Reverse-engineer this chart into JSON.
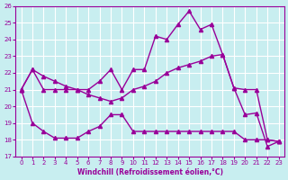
{
  "xlabel": "Windchill (Refroidissement éolien,°C)",
  "xlim": [
    -0.5,
    23.5
  ],
  "ylim": [
    17,
    26
  ],
  "yticks": [
    17,
    18,
    19,
    20,
    21,
    22,
    23,
    24,
    25,
    26
  ],
  "xticks": [
    0,
    1,
    2,
    3,
    4,
    5,
    6,
    7,
    8,
    9,
    10,
    11,
    12,
    13,
    14,
    15,
    16,
    17,
    18,
    19,
    20,
    21,
    22,
    23
  ],
  "background_color": "#c8eef0",
  "grid_color": "#ffffff",
  "line_color": "#990099",
  "series": [
    {
      "x": [
        0,
        1,
        2,
        3,
        4,
        5,
        6,
        7,
        8,
        9,
        10,
        11,
        12,
        13,
        14,
        15,
        16,
        17,
        18,
        19,
        20,
        21,
        22,
        23
      ],
      "y": [
        21.0,
        22.2,
        21.0,
        21.0,
        21.0,
        21.0,
        21.0,
        21.5,
        22.2,
        21.0,
        22.2,
        22.2,
        24.2,
        24.0,
        24.9,
        25.7,
        24.6,
        24.9,
        23.1,
        21.1,
        19.5,
        19.6,
        17.6,
        17.9
      ],
      "marker": "^",
      "markersize": 3,
      "linewidth": 1.0
    },
    {
      "x": [
        0,
        1,
        2,
        3,
        4,
        5,
        6,
        7,
        8,
        9,
        10,
        11,
        12,
        13,
        14,
        15,
        16,
        17,
        18,
        19,
        20,
        21,
        22,
        23
      ],
      "y": [
        21.0,
        22.2,
        21.8,
        21.5,
        21.2,
        21.0,
        20.7,
        20.5,
        20.3,
        20.5,
        21.0,
        21.2,
        21.5,
        22.0,
        22.3,
        22.5,
        22.7,
        23.0,
        23.1,
        21.1,
        21.0,
        21.0,
        18.0,
        17.9
      ],
      "marker": "^",
      "markersize": 3,
      "linewidth": 1.0
    },
    {
      "x": [
        0,
        1,
        2,
        3,
        4,
        5,
        6,
        7,
        8,
        9,
        10,
        11,
        12,
        13,
        14,
        15,
        16,
        17,
        18,
        19,
        20,
        21,
        22,
        23
      ],
      "y": [
        21.0,
        19.0,
        18.5,
        18.1,
        18.1,
        18.1,
        18.5,
        18.8,
        19.5,
        19.5,
        18.5,
        18.5,
        18.5,
        18.5,
        18.5,
        18.5,
        18.5,
        18.5,
        18.5,
        18.5,
        18.0,
        18.0,
        18.0,
        17.9
      ],
      "marker": "^",
      "markersize": 3,
      "linewidth": 1.0
    }
  ]
}
